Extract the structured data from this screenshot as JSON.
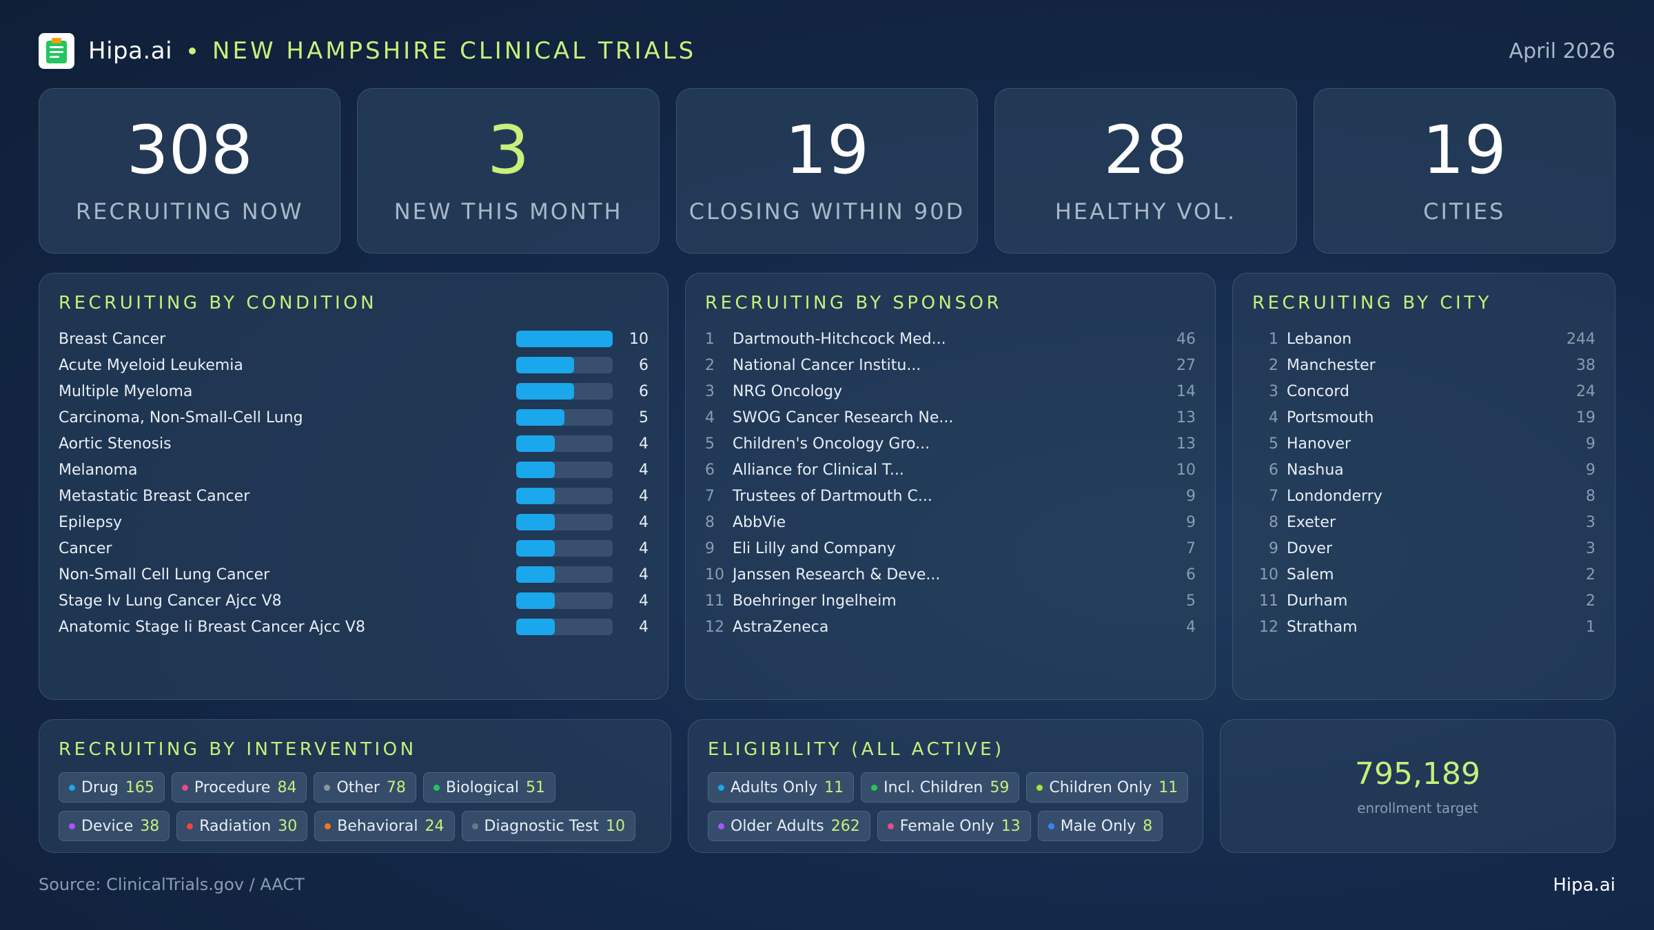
{
  "header": {
    "brand": "Hipa.ai",
    "title": "NEW HAMPSHIRE CLINICAL TRIALS",
    "date": "April 2026",
    "logo_icon": "clipboard-icon"
  },
  "kpis": [
    {
      "value": "308",
      "label": "RECRUITING NOW"
    },
    {
      "value": "3",
      "label": "NEW THIS MONTH"
    },
    {
      "value": "19",
      "label": "CLOSING WITHIN 90D"
    },
    {
      "value": "28",
      "label": "HEALTHY VOL."
    },
    {
      "value": "19",
      "label": "CITIES"
    }
  ],
  "condition": {
    "title": "RECRUITING BY CONDITION",
    "max": 10,
    "rows": [
      {
        "name": "Breast Cancer",
        "count": 10
      },
      {
        "name": "Acute Myeloid Leukemia",
        "count": 6
      },
      {
        "name": "Multiple Myeloma",
        "count": 6
      },
      {
        "name": "Carcinoma, Non-Small-Cell Lung",
        "count": 5
      },
      {
        "name": "Aortic Stenosis",
        "count": 4
      },
      {
        "name": "Melanoma",
        "count": 4
      },
      {
        "name": "Metastatic Breast Cancer",
        "count": 4
      },
      {
        "name": "Epilepsy",
        "count": 4
      },
      {
        "name": "Cancer",
        "count": 4
      },
      {
        "name": "Non-Small Cell Lung Cancer",
        "count": 4
      },
      {
        "name": "Stage Iv Lung Cancer Ajcc V8",
        "count": 4
      },
      {
        "name": "Anatomic Stage Ii Breast Cancer Ajcc V8",
        "count": 4
      }
    ]
  },
  "sponsor": {
    "title": "RECRUITING BY SPONSOR",
    "rows": [
      {
        "rank": "1",
        "name": "Dartmouth-Hitchcock Med...",
        "count": "46"
      },
      {
        "rank": "2",
        "name": "National Cancer Institu...",
        "count": "27"
      },
      {
        "rank": "3",
        "name": "NRG Oncology",
        "count": "14"
      },
      {
        "rank": "4",
        "name": "SWOG Cancer Research Ne...",
        "count": "13"
      },
      {
        "rank": "5",
        "name": "Children's Oncology Gro...",
        "count": "13"
      },
      {
        "rank": "6",
        "name": "Alliance for Clinical T...",
        "count": "10"
      },
      {
        "rank": "7",
        "name": "Trustees of Dartmouth C...",
        "count": "9"
      },
      {
        "rank": "8",
        "name": "AbbVie",
        "count": "9"
      },
      {
        "rank": "9",
        "name": "Eli Lilly and Company",
        "count": "7"
      },
      {
        "rank": "10",
        "name": "Janssen Research & Deve...",
        "count": "6"
      },
      {
        "rank": "11",
        "name": "Boehringer Ingelheim",
        "count": "5"
      },
      {
        "rank": "12",
        "name": "AstraZeneca",
        "count": "4"
      }
    ]
  },
  "city": {
    "title": "RECRUITING BY CITY",
    "rows": [
      {
        "rank": "1",
        "name": "Lebanon",
        "count": "244"
      },
      {
        "rank": "2",
        "name": "Manchester",
        "count": "38"
      },
      {
        "rank": "3",
        "name": "Concord",
        "count": "24"
      },
      {
        "rank": "4",
        "name": "Portsmouth",
        "count": "19"
      },
      {
        "rank": "5",
        "name": "Hanover",
        "count": "9"
      },
      {
        "rank": "6",
        "name": "Nashua",
        "count": "9"
      },
      {
        "rank": "7",
        "name": "Londonderry",
        "count": "8"
      },
      {
        "rank": "8",
        "name": "Exeter",
        "count": "3"
      },
      {
        "rank": "9",
        "name": "Dover",
        "count": "3"
      },
      {
        "rank": "10",
        "name": "Salem",
        "count": "2"
      },
      {
        "rank": "11",
        "name": "Durham",
        "count": "2"
      },
      {
        "rank": "12",
        "name": "Stratham",
        "count": "1"
      }
    ]
  },
  "intervention": {
    "title": "RECRUITING BY INTERVENTION",
    "chips": [
      {
        "label": "Drug",
        "count": "165",
        "color": "#1aa7ec"
      },
      {
        "label": "Procedure",
        "count": "84",
        "color": "#e84a8a"
      },
      {
        "label": "Other",
        "count": "78",
        "color": "#8c96a3"
      },
      {
        "label": "Biological",
        "count": "51",
        "color": "#22c55e"
      },
      {
        "label": "Device",
        "count": "38",
        "color": "#a855f7"
      },
      {
        "label": "Radiation",
        "count": "30",
        "color": "#ef4444"
      },
      {
        "label": "Behavioral",
        "count": "24",
        "color": "#f97316"
      },
      {
        "label": "Diagnostic Test",
        "count": "10",
        "color": "#6b7785"
      }
    ]
  },
  "eligibility": {
    "title": "ELIGIBILITY (ALL ACTIVE)",
    "chips": [
      {
        "label": "Adults Only",
        "count": "11",
        "color": "#1aa7ec"
      },
      {
        "label": "Incl. Children",
        "count": "59",
        "color": "#22c55e"
      },
      {
        "label": "Children Only",
        "count": "11",
        "color": "#a3e635"
      },
      {
        "label": "Older Adults",
        "count": "262",
        "color": "#a855f7"
      },
      {
        "label": "Female Only",
        "count": "13",
        "color": "#e84a8a"
      },
      {
        "label": "Male Only",
        "count": "8",
        "color": "#3b82f6"
      }
    ]
  },
  "enrollment": {
    "value": "795,189",
    "label": "enrollment target"
  },
  "footer": {
    "source": "Source: ClinicalTrials.gov / AACT",
    "brand": "Hipa.ai"
  }
}
